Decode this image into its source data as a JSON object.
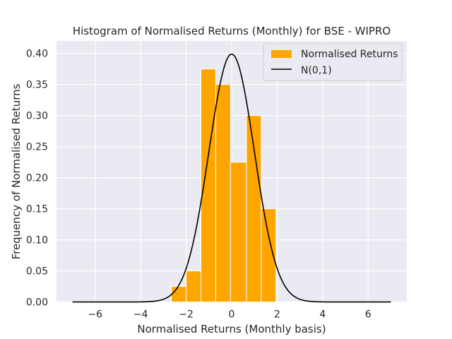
{
  "chart_data": {
    "type": "bar",
    "title": "Histogram of Normalised Returns (Monthly) for BSE - WIPRO",
    "xlabel": "Normalised Returns (Monthly basis)",
    "ylabel": "Frequency of Normalised Returns",
    "xlim": [
      -7.7,
      7.7
    ],
    "ylim": [
      0,
      0.42
    ],
    "xticks": [
      -6,
      -4,
      -2,
      0,
      2,
      4,
      6
    ],
    "xtick_labels": [
      "−6",
      "−4",
      "−2",
      "0",
      "2",
      "4",
      "6"
    ],
    "yticks": [
      0.0,
      0.05,
      0.1,
      0.15,
      0.2,
      0.25,
      0.3,
      0.35,
      0.4
    ],
    "ytick_labels": [
      "0.00",
      "0.05",
      "0.10",
      "0.15",
      "0.20",
      "0.25",
      "0.30",
      "0.35",
      "0.40"
    ],
    "grid": true,
    "legend_position": "top-right",
    "series": [
      {
        "name": "Normalised Returns",
        "kind": "histogram",
        "color": "#ffa500",
        "bins": [
          {
            "x0": -2.65,
            "x1": -2.0,
            "value": 0.025
          },
          {
            "x0": -2.0,
            "x1": -1.35,
            "value": 0.05
          },
          {
            "x0": -1.35,
            "x1": -0.7,
            "value": 0.375
          },
          {
            "x0": -0.7,
            "x1": -0.05,
            "value": 0.35
          },
          {
            "x0": -0.05,
            "x1": 0.65,
            "value": 0.225
          },
          {
            "x0": 0.65,
            "x1": 1.3,
            "value": 0.3
          },
          {
            "x0": 1.3,
            "x1": 1.95,
            "value": 0.15
          }
        ]
      },
      {
        "name": "N(0,1)",
        "kind": "line",
        "color": "#000000",
        "x_range": [
          -7,
          7
        ],
        "function": "standard-normal-pdf"
      }
    ]
  }
}
